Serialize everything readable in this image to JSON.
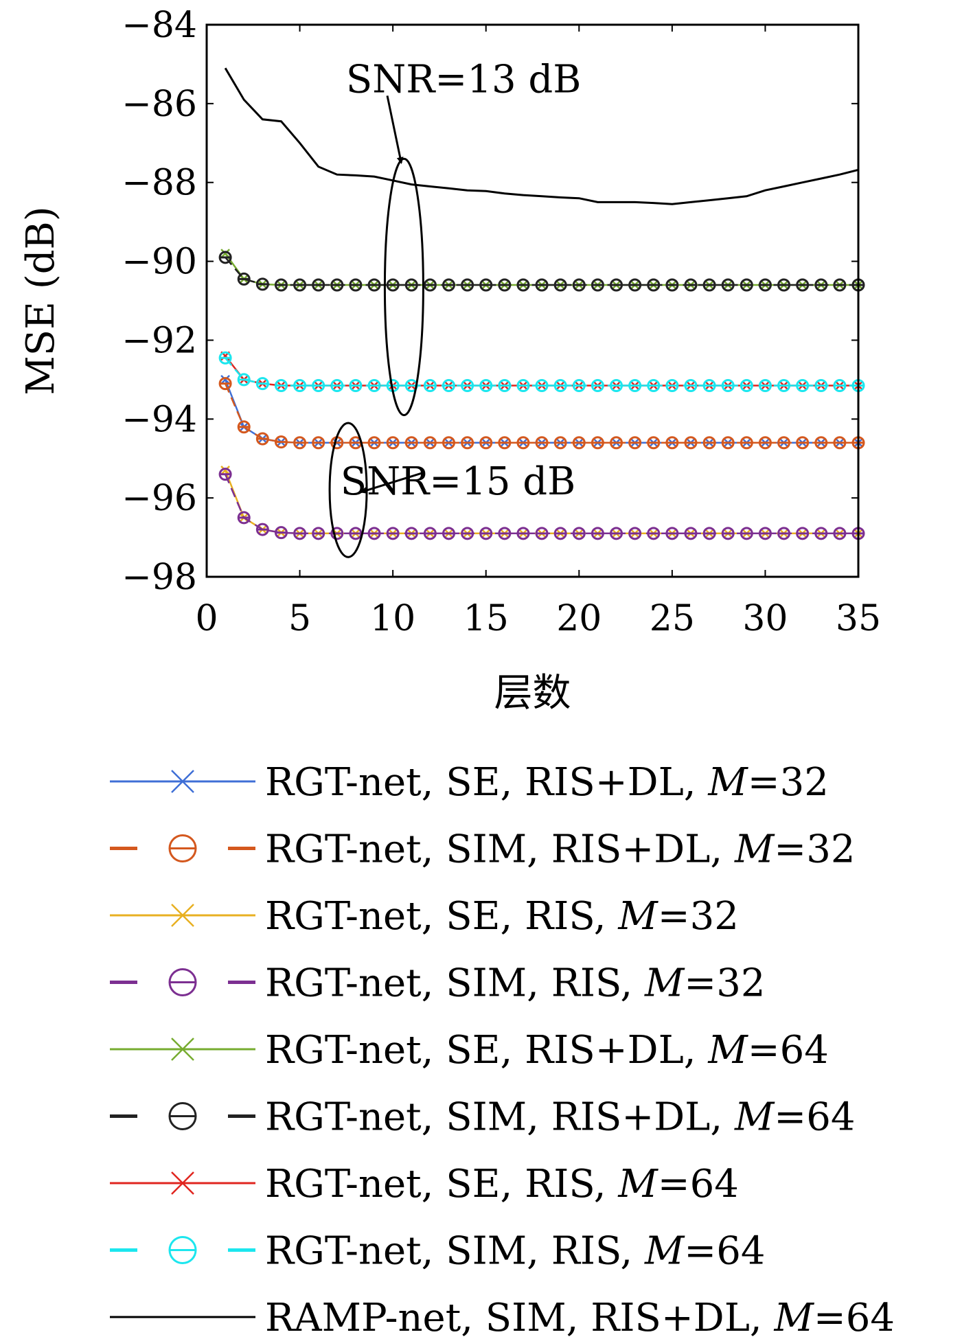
{
  "chart_data": {
    "type": "line",
    "xlabel": "层数",
    "ylabel": "MSE (dB)",
    "xlim": [
      0,
      35
    ],
    "ylim": [
      -98,
      -84
    ],
    "xticks": [
      0,
      5,
      10,
      15,
      20,
      25,
      30,
      35
    ],
    "yticks": [
      -84,
      -86,
      -88,
      -90,
      -92,
      -94,
      -96,
      -98
    ],
    "x": [
      1,
      2,
      3,
      4,
      5,
      6,
      7,
      8,
      9,
      10,
      11,
      12,
      13,
      14,
      15,
      16,
      17,
      18,
      19,
      20,
      21,
      22,
      23,
      24,
      25,
      26,
      27,
      28,
      29,
      30,
      31,
      32,
      33,
      34,
      35
    ],
    "grid": false,
    "legend_position": "below",
    "annotations": [
      {
        "text": "SNR=13 dB",
        "x": 13.8,
        "y": -85.4,
        "target_x": 10.5,
        "target_y": -87.5
      },
      {
        "text": "SNR=15 dB",
        "x": 13.5,
        "y": -95.6,
        "target_x": 8.2,
        "target_y": -95.8
      }
    ],
    "series": [
      {
        "name_main": "RGT-net, SE, RIS+DL, ",
        "name_var": "M",
        "name_eq": "=32",
        "color": "#3f6fd6",
        "line": "solid",
        "marker": "x",
        "values": [
          -93.0,
          -94.2,
          -94.5,
          -94.58,
          -94.6,
          -94.6,
          -94.6,
          -94.6,
          -94.6,
          -94.6,
          -94.6,
          -94.6,
          -94.6,
          -94.6,
          -94.6,
          -94.6,
          -94.6,
          -94.6,
          -94.6,
          -94.6,
          -94.6,
          -94.6,
          -94.6,
          -94.6,
          -94.6,
          -94.6,
          -94.6,
          -94.6,
          -94.6,
          -94.6,
          -94.6,
          -94.6,
          -94.6,
          -94.6,
          -94.6
        ]
      },
      {
        "name_main": "RGT-net, SIM, RIS+DL, ",
        "name_var": "M",
        "name_eq": "=32",
        "color": "#d4581e",
        "line": "dashed",
        "marker": "theta",
        "values": [
          -93.1,
          -94.2,
          -94.5,
          -94.58,
          -94.6,
          -94.6,
          -94.6,
          -94.6,
          -94.6,
          -94.6,
          -94.6,
          -94.6,
          -94.6,
          -94.6,
          -94.6,
          -94.6,
          -94.6,
          -94.6,
          -94.6,
          -94.6,
          -94.6,
          -94.6,
          -94.6,
          -94.6,
          -94.6,
          -94.6,
          -94.6,
          -94.6,
          -94.6,
          -94.6,
          -94.6,
          -94.6,
          -94.6,
          -94.6,
          -94.6
        ]
      },
      {
        "name_main": "RGT-net, SE, RIS, ",
        "name_var": "M",
        "name_eq": "=32",
        "color": "#e8b021",
        "line": "solid",
        "marker": "x",
        "values": [
          -95.3,
          -96.5,
          -96.8,
          -96.88,
          -96.9,
          -96.9,
          -96.9,
          -96.9,
          -96.9,
          -96.9,
          -96.9,
          -96.9,
          -96.9,
          -96.9,
          -96.9,
          -96.9,
          -96.9,
          -96.9,
          -96.9,
          -96.9,
          -96.9,
          -96.9,
          -96.9,
          -96.9,
          -96.9,
          -96.9,
          -96.9,
          -96.9,
          -96.9,
          -96.9,
          -96.9,
          -96.9,
          -96.9,
          -96.9,
          -96.9
        ]
      },
      {
        "name_main": "RGT-net, SIM, RIS, ",
        "name_var": "M",
        "name_eq": "=32",
        "color": "#7c2f91",
        "line": "dashed",
        "marker": "theta",
        "values": [
          -95.4,
          -96.5,
          -96.8,
          -96.88,
          -96.9,
          -96.9,
          -96.9,
          -96.9,
          -96.9,
          -96.9,
          -96.9,
          -96.9,
          -96.9,
          -96.9,
          -96.9,
          -96.9,
          -96.9,
          -96.9,
          -96.9,
          -96.9,
          -96.9,
          -96.9,
          -96.9,
          -96.9,
          -96.9,
          -96.9,
          -96.9,
          -96.9,
          -96.9,
          -96.9,
          -96.9,
          -96.9,
          -96.9,
          -96.9,
          -96.9
        ]
      },
      {
        "name_main": "RGT-net, SE, RIS+DL, ",
        "name_var": "M",
        "name_eq": "=64",
        "color": "#77ac30",
        "line": "solid",
        "marker": "x",
        "values": [
          -89.8,
          -90.45,
          -90.58,
          -90.6,
          -90.6,
          -90.6,
          -90.6,
          -90.6,
          -90.6,
          -90.6,
          -90.6,
          -90.6,
          -90.6,
          -90.6,
          -90.6,
          -90.6,
          -90.6,
          -90.6,
          -90.6,
          -90.6,
          -90.6,
          -90.6,
          -90.6,
          -90.6,
          -90.6,
          -90.6,
          -90.6,
          -90.6,
          -90.6,
          -90.6,
          -90.6,
          -90.6,
          -90.6,
          -90.6,
          -90.6
        ]
      },
      {
        "name_main": "RGT-net, SIM, RIS+DL, ",
        "name_var": "M",
        "name_eq": "=64",
        "color": "#222222",
        "line": "dashed",
        "marker": "theta",
        "values": [
          -89.9,
          -90.45,
          -90.58,
          -90.6,
          -90.6,
          -90.6,
          -90.6,
          -90.6,
          -90.6,
          -90.6,
          -90.6,
          -90.6,
          -90.6,
          -90.6,
          -90.6,
          -90.6,
          -90.6,
          -90.6,
          -90.6,
          -90.6,
          -90.6,
          -90.6,
          -90.6,
          -90.6,
          -90.6,
          -90.6,
          -90.6,
          -90.6,
          -90.6,
          -90.6,
          -90.6,
          -90.6,
          -90.6,
          -90.6,
          -90.6
        ]
      },
      {
        "name_main": "RGT-net, SE, RIS, ",
        "name_var": "M",
        "name_eq": "=64",
        "color": "#e0251f",
        "line": "solid",
        "marker": "x",
        "values": [
          -92.4,
          -93.0,
          -93.1,
          -93.15,
          -93.15,
          -93.15,
          -93.15,
          -93.15,
          -93.15,
          -93.15,
          -93.15,
          -93.15,
          -93.15,
          -93.15,
          -93.15,
          -93.15,
          -93.15,
          -93.15,
          -93.15,
          -93.15,
          -93.15,
          -93.15,
          -93.15,
          -93.15,
          -93.15,
          -93.15,
          -93.15,
          -93.15,
          -93.15,
          -93.15,
          -93.15,
          -93.15,
          -93.15,
          -93.15,
          -93.15
        ]
      },
      {
        "name_main": "RGT-net, SIM, RIS, ",
        "name_var": "M",
        "name_eq": "=64",
        "color": "#1ce6ee",
        "line": "dashed",
        "marker": "theta",
        "values": [
          -92.45,
          -93.0,
          -93.1,
          -93.15,
          -93.15,
          -93.15,
          -93.15,
          -93.15,
          -93.15,
          -93.15,
          -93.15,
          -93.15,
          -93.15,
          -93.15,
          -93.15,
          -93.15,
          -93.15,
          -93.15,
          -93.15,
          -93.15,
          -93.15,
          -93.15,
          -93.15,
          -93.15,
          -93.15,
          -93.15,
          -93.15,
          -93.15,
          -93.15,
          -93.15,
          -93.15,
          -93.15,
          -93.15,
          -93.15,
          -93.15
        ]
      },
      {
        "name_main": "RAMP-net, SIM, RIS+DL, ",
        "name_var": "M",
        "name_eq": "=64",
        "color": "#000000",
        "line": "solid",
        "marker": "none",
        "values": [
          -85.1,
          -85.9,
          -86.4,
          -86.45,
          -87.0,
          -87.6,
          -87.8,
          -87.82,
          -87.85,
          -87.95,
          -88.05,
          -88.1,
          -88.15,
          -88.2,
          -88.22,
          -88.28,
          -88.32,
          -88.35,
          -88.38,
          -88.4,
          -88.5,
          -88.5,
          -88.5,
          -88.52,
          -88.55,
          -88.5,
          -88.45,
          -88.4,
          -88.35,
          -88.2,
          -88.1,
          -88.0,
          -87.9,
          -87.8,
          -87.68
        ]
      }
    ]
  }
}
